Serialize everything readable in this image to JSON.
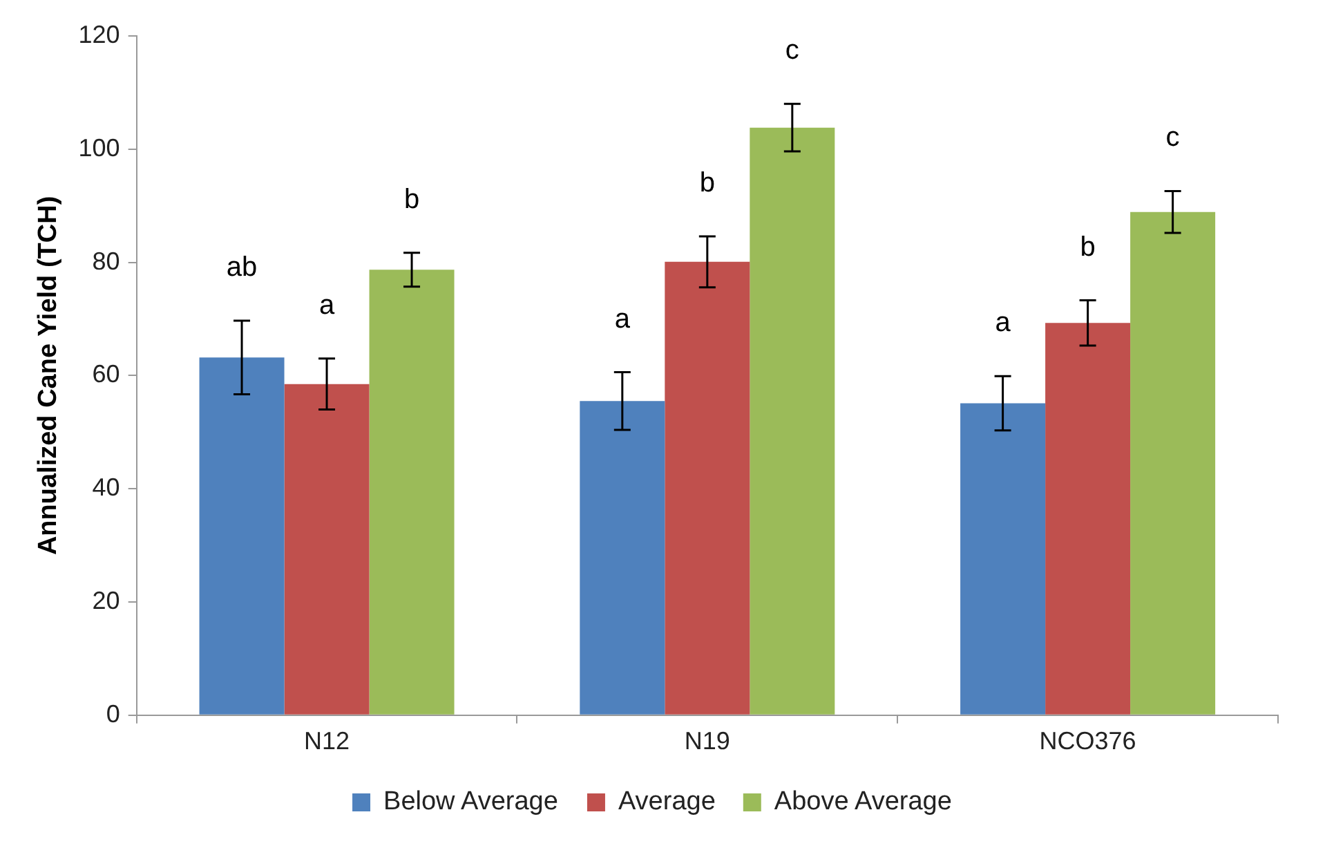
{
  "chart_data": {
    "type": "bar",
    "ylabel": "Annualized Cane Yield (TCH)",
    "categories": [
      "N12",
      "N19",
      "NCO376"
    ],
    "series": [
      {
        "name": "Below Average",
        "color": "#4f81bd",
        "values": [
          63.2,
          55.5,
          55.1
        ],
        "errors": [
          6.5,
          5.1,
          4.8
        ]
      },
      {
        "name": "Average",
        "color": "#c0504d",
        "values": [
          58.5,
          80.1,
          69.3
        ],
        "errors": [
          4.5,
          4.5,
          4
        ]
      },
      {
        "name": "Above Average",
        "color": "#9bbb59",
        "values": [
          78.7,
          103.8,
          88.9
        ],
        "errors": [
          3,
          4.2,
          3.7
        ]
      }
    ],
    "ylim": [
      0,
      120
    ],
    "yticks": [
      0,
      20,
      40,
      60,
      80,
      100,
      120
    ],
    "grid": false,
    "legend": "bottom",
    "annotations": [
      "ab",
      "a",
      "b",
      "a",
      "b",
      "c",
      "a",
      "b",
      "c"
    ]
  }
}
